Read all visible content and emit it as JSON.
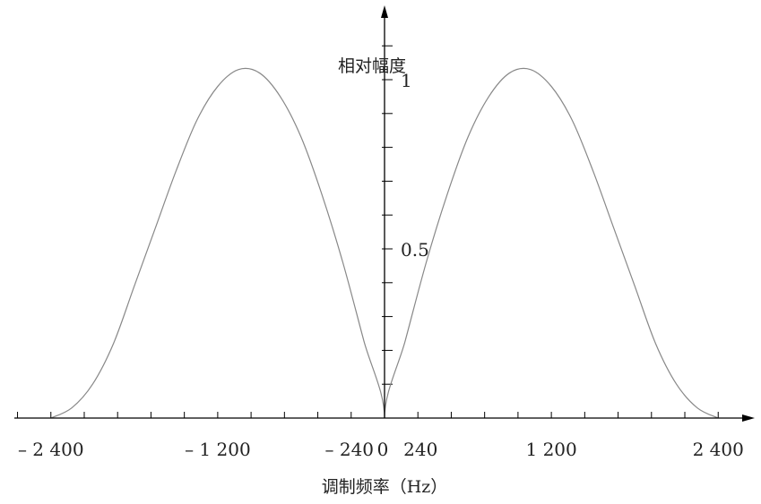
{
  "chart_data": {
    "type": "line",
    "title": "",
    "xlabel": "调制频率（Hz）",
    "ylabel": "相对幅度",
    "xlim": [
      -2640,
      2720
    ],
    "ylim": [
      0,
      1.1
    ],
    "x_tick_labels": [
      {
        "value": -2400,
        "label": "– 2 400"
      },
      {
        "value": -1200,
        "label": "– 1 200"
      },
      {
        "value": -240,
        "label": "– 240"
      },
      {
        "value": 0,
        "label": "0"
      },
      {
        "value": 240,
        "label": "240"
      },
      {
        "value": 1200,
        "label": "1 200"
      },
      {
        "value": 2400,
        "label": "2 400"
      }
    ],
    "y_tick_labels": [
      {
        "value": 0.5,
        "label": "0.5"
      },
      {
        "value": 1,
        "label": "1"
      }
    ],
    "x_minor_step": 240,
    "y_minor_step": 0.1,
    "series": [
      {
        "x": [
          -2400,
          -2250,
          -2100,
          -1950,
          -1800,
          -1650,
          -1500,
          -1350,
          -1200,
          -1050,
          -900,
          -750,
          -600,
          -450,
          -300,
          -150,
          0,
          150,
          300,
          450,
          600,
          750,
          900,
          1050,
          1200,
          1350,
          1500,
          1650,
          1800,
          1950,
          2100,
          2250,
          2400
        ],
        "values": [
          0,
          0.03,
          0.1,
          0.22,
          0.39,
          0.56,
          0.73,
          0.88,
          0.98,
          1.03,
          1.02,
          0.95,
          0.83,
          0.66,
          0.46,
          0.23,
          0,
          0.23,
          0.46,
          0.66,
          0.83,
          0.95,
          1.02,
          1.03,
          0.98,
          0.88,
          0.73,
          0.56,
          0.39,
          0.22,
          0.1,
          0.03,
          0
        ],
        "color": "#888888"
      }
    ]
  }
}
